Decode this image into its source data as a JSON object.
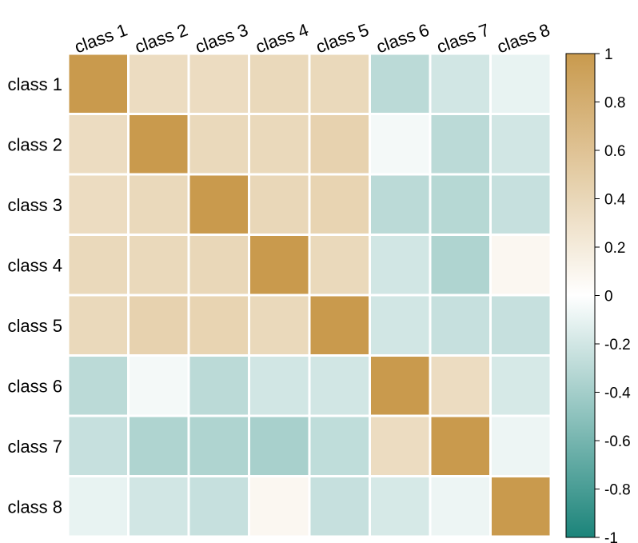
{
  "chart_data": {
    "type": "heatmap",
    "title": "",
    "xlabel": "",
    "ylabel": "",
    "x_labels": [
      "class 1",
      "class 2",
      "class 3",
      "class 4",
      "class 5",
      "class 6",
      "class 7",
      "class 8"
    ],
    "y_labels": [
      "class 1",
      "class 2",
      "class 3",
      "class 4",
      "class 5",
      "class 6",
      "class 7",
      "class 8"
    ],
    "values": [
      [
        1.0,
        0.35,
        0.35,
        0.38,
        0.38,
        -0.3,
        -0.2,
        -0.1
      ],
      [
        0.35,
        1.0,
        0.38,
        0.38,
        0.45,
        -0.05,
        -0.3,
        -0.2
      ],
      [
        0.35,
        0.38,
        1.0,
        0.4,
        0.43,
        -0.3,
        -0.32,
        -0.25
      ],
      [
        0.38,
        0.38,
        0.4,
        1.0,
        0.38,
        -0.2,
        -0.35,
        0.08
      ],
      [
        0.38,
        0.45,
        0.43,
        0.38,
        1.0,
        -0.2,
        -0.25,
        -0.25
      ],
      [
        -0.3,
        -0.05,
        -0.3,
        -0.2,
        -0.2,
        1.0,
        0.35,
        -0.18
      ],
      [
        -0.25,
        -0.35,
        -0.35,
        -0.38,
        -0.28,
        0.35,
        1.0,
        -0.08
      ],
      [
        -0.1,
        -0.2,
        -0.25,
        0.08,
        -0.25,
        -0.18,
        -0.08,
        1.0
      ]
    ],
    "colorbar": {
      "range": [
        -1,
        1
      ],
      "ticks": [
        1,
        0.8,
        0.6,
        0.4,
        0.2,
        0,
        -0.2,
        -0.4,
        -0.6,
        -0.8,
        -1
      ],
      "tick_labels": [
        "1",
        "0.8",
        "0.6",
        "0.4",
        "0.2",
        "0",
        "-0.2",
        "-0.4",
        "-0.6",
        "-0.8",
        "-1"
      ],
      "colors": {
        "negative": "#1b847a",
        "zero": "#ffffff",
        "positive": "#c99a4d"
      }
    },
    "grid": true,
    "cell_border_color": "#ffffff"
  }
}
